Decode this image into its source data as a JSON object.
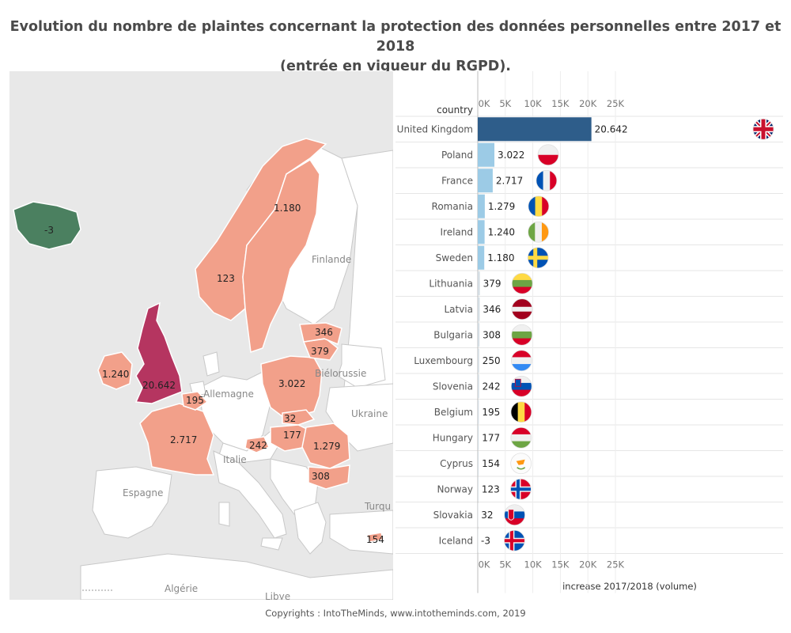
{
  "title_line1": "Evolution du nombre de plaintes concernant la protection des données personnelles entre 2017 et 2018",
  "title_line2": "(entrée en vigueur du RGPD).",
  "copyright": "Copyrights : IntoTheMinds, www.intotheminds.com, 2019",
  "map": {
    "place_labels": [
      "Finlande",
      "Allemagne",
      "Biélorussie",
      "Ukraine",
      "Italie",
      "Espagne",
      "Turqu",
      "Algérie",
      "Libye"
    ],
    "value_labels": {
      "iceland": "-3",
      "sweden": "1.180",
      "norway": "123",
      "uk": "20.642",
      "ireland": "1.240",
      "belgium": "195",
      "france": "2.717",
      "poland": "3.022",
      "latvia": "346",
      "lithuania": "379",
      "slovakia": "32",
      "hungary": "177",
      "slovenia": "242",
      "romania": "1.279",
      "bulgaria": "308",
      "cyprus": "154"
    },
    "colors": {
      "positive": "#f2a08a",
      "top": "#b53560",
      "negative": "#4b8060",
      "land": "#ffffff",
      "sea": "#e8e8e8"
    }
  },
  "chart_data": {
    "type": "bar",
    "orientation": "horizontal",
    "row_header": "country",
    "categories": [
      "United Kingdom",
      "Poland",
      "France",
      "Romania",
      "Ireland",
      "Sweden",
      "Lithuania",
      "Latvia",
      "Bulgaria",
      "Luxembourg",
      "Slovenia",
      "Belgium",
      "Hungary",
      "Cyprus",
      "Norway",
      "Slovakia",
      "Iceland"
    ],
    "values": [
      20642,
      3022,
      2717,
      1279,
      1240,
      1180,
      379,
      346,
      308,
      250,
      242,
      195,
      177,
      154,
      123,
      32,
      -3
    ],
    "value_labels": [
      "20.642",
      "3.022",
      "2.717",
      "1.279",
      "1.240",
      "1.180",
      "379",
      "346",
      "308",
      "250",
      "242",
      "195",
      "177",
      "154",
      "123",
      "32",
      "-3"
    ],
    "flags": [
      "flag-uk-icon",
      "flag-poland-icon",
      "flag-france-icon",
      "flag-romania-icon",
      "flag-ireland-icon",
      "flag-sweden-icon",
      "flag-lithuania-icon",
      "flag-latvia-icon",
      "flag-bulgaria-icon",
      "flag-luxembourg-icon",
      "flag-slovenia-icon",
      "flag-belgium-icon",
      "flag-hungary-icon",
      "flag-cyprus-icon",
      "flag-norway-icon",
      "flag-slovakia-icon",
      "flag-iceland-icon"
    ],
    "xlabel": "increase 2017/2018 (volume)",
    "xticks": [
      0,
      5000,
      10000,
      15000,
      20000,
      25000
    ],
    "xtick_labels": [
      "0K",
      "5K",
      "10K",
      "15K",
      "20K",
      "25K"
    ],
    "xlim": [
      0,
      27000
    ],
    "bar_colors": {
      "max": "#2e5d8a",
      "mid": "#9ccbe6",
      "low": "#d4dde3"
    }
  }
}
